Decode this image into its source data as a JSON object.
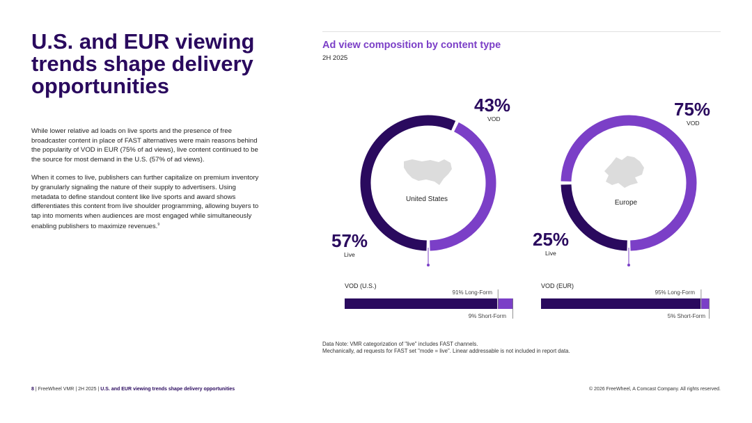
{
  "headline": "U.S. and EUR viewing trends shape delivery opportunities",
  "body": [
    "While lower relative ad loads on live sports and the presence of free broadcaster content in place of FAST alternatives were main reasons behind the popularity of VOD in EUR (75% of ad views), live content continued to be the source for most demand in the U.S. (57% of ad views).",
    "When it comes to live, publishers can further capitalize on premium inventory by granularly signaling the nature of their supply to advertisers. Using metadata to define standout content like live sports and award shows differentiates this content from live shoulder programming, allowing buyers to tap into moments when audiences are most engaged while simultaneously enabling publishers to maximize revenues."
  ],
  "footnote_marker": "9",
  "chart_data": [
    {
      "type": "pie",
      "title": "Ad view composition by content type",
      "subtitle": "2H 2025",
      "region": "United States",
      "slices": [
        {
          "label": "VOD",
          "value": 43,
          "display": "43%",
          "color": "#7b3fc7"
        },
        {
          "label": "Live",
          "value": 57,
          "display": "57%",
          "color": "#2a0a5e"
        }
      ]
    },
    {
      "type": "pie",
      "region": "Europe",
      "slices": [
        {
          "label": "VOD",
          "value": 75,
          "display": "75%",
          "color": "#7b3fc7"
        },
        {
          "label": "Live",
          "value": 25,
          "display": "25%",
          "color": "#2a0a5e"
        }
      ]
    },
    {
      "type": "bar",
      "orientation": "horizontal-stacked",
      "title": "VOD (U.S.)",
      "series": [
        {
          "name": "Long-Form",
          "value": 91,
          "annotation": "91% Long-Form",
          "color": "#2a0a5e"
        },
        {
          "name": "Short-Form",
          "value": 9,
          "annotation": "9% Short-Form",
          "color": "#7b3fc7"
        }
      ]
    },
    {
      "type": "bar",
      "orientation": "horizontal-stacked",
      "title": "VOD (EUR)",
      "series": [
        {
          "name": "Long-Form",
          "value": 95,
          "annotation": "95% Long-Form",
          "color": "#2a0a5e"
        },
        {
          "name": "Short-Form",
          "value": 5,
          "annotation": "5% Short-Form",
          "color": "#7b3fc7"
        }
      ]
    }
  ],
  "data_note": [
    "Data Note: VMR categorization of \"live\" includes FAST channels.",
    "Mechanically, ad requests for FAST set \"mode = live\". Linear addressable is not included in report data."
  ],
  "footer": {
    "page": "8",
    "brand": "FreeWheel VMR",
    "period": "2H 2025",
    "section": "U.S. and EUR viewing trends shape delivery opportunities",
    "copyright": "© 2026 FreeWheel, A Comcast Company. All rights reserved."
  },
  "map_fill_color": "#dcdcdc"
}
